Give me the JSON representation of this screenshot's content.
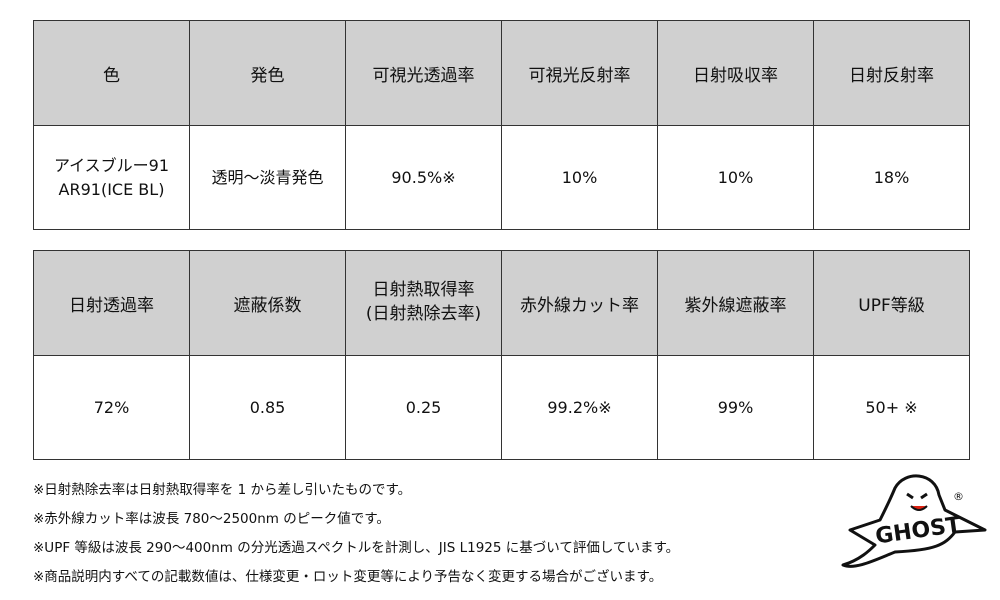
{
  "table1": {
    "headers": [
      "色",
      "発色",
      "可視光透過率",
      "可視光反射率",
      "日射吸収率",
      "日射反射率"
    ],
    "row": [
      "アイスブルー91\nAR91(ICE BL)",
      "透明～淡青発色",
      "90.5%※",
      "10%",
      "10%",
      "18%"
    ]
  },
  "table2": {
    "headers": [
      "日射透過率",
      "遮蔽係数",
      "日射熱取得率\n(日射熱除去率)",
      "赤外線カット率",
      "紫外線遮蔽率",
      "UPF等級"
    ],
    "row": [
      "72%",
      "0.85",
      "0.25",
      "99.2%※",
      "99%",
      "50+ ※"
    ]
  },
  "notes": [
    "※日射熱除去率は日射熱取得率を 1 から差し引いたものです。",
    "※赤外線カット率は波長 780～2500nm のピーク値です。",
    "※UPF 等級は波長 290～400nm の分光透過スペクトルを計測し、JIS L1925 に基づいて評価しています。",
    "※商品説明内すべての記載数値は、仕様変更・ロット変更等により予告なく変更する場合がございます。"
  ],
  "logo": {
    "text": "GHOST",
    "registered": "®"
  }
}
